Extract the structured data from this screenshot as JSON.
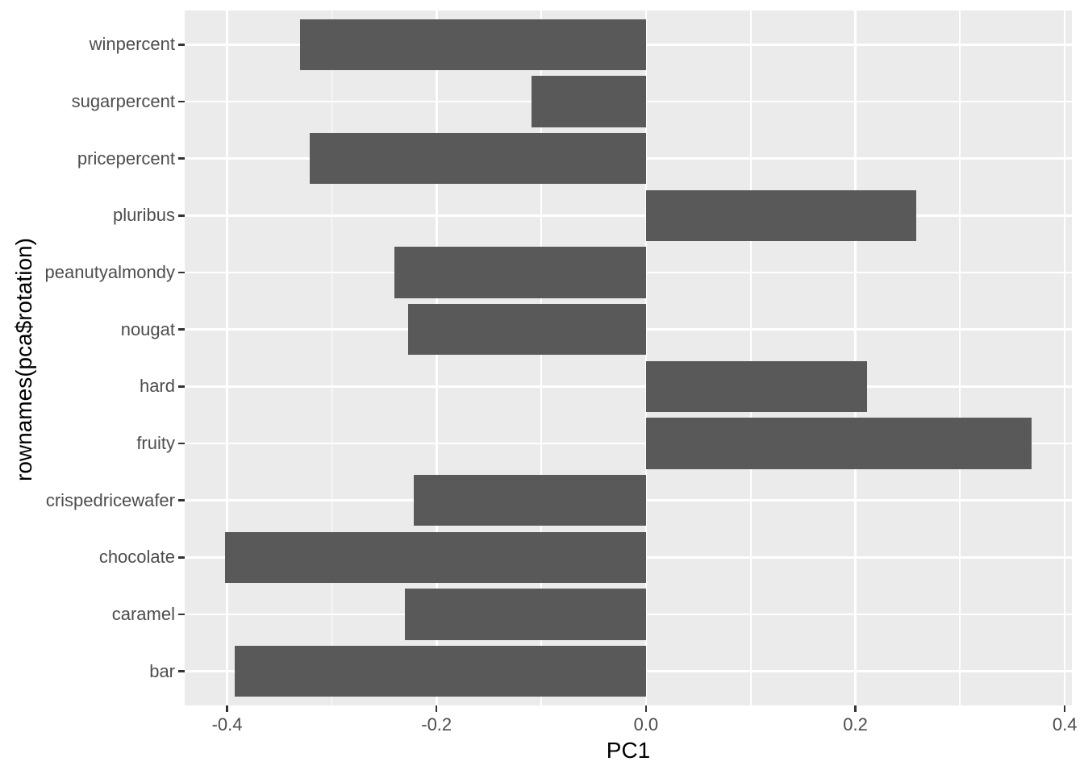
{
  "chart_data": {
    "type": "bar",
    "orientation": "horizontal",
    "title": "",
    "xlabel": "PC1",
    "ylabel": "rownames(pca$rotation)",
    "categories": [
      "winpercent",
      "sugarpercent",
      "pricepercent",
      "pluribus",
      "peanutyalmondy",
      "nougat",
      "hard",
      "fruity",
      "crispedricewafer",
      "chocolate",
      "caramel",
      "bar"
    ],
    "values": [
      -0.33,
      -0.109,
      -0.321,
      0.258,
      -0.24,
      -0.227,
      0.211,
      0.368,
      -0.222,
      -0.402,
      -0.23,
      -0.393
    ],
    "xlim": [
      -0.4405,
      0.4068
    ],
    "x_major_ticks": [
      -0.4,
      -0.2,
      0,
      0.2,
      0.4
    ],
    "x_tick_labels": [
      "-0.4",
      "-0.2",
      "0.0",
      "0.2",
      "0.4"
    ],
    "x_minor_ticks": [
      -0.3,
      -0.1,
      0.1,
      0.3
    ],
    "grid": true,
    "legend": "none",
    "bar_width_fraction": 0.9,
    "colors": {
      "bar_fill": "#595959",
      "panel_bg": "#EBEBEB",
      "grid": "#FFFFFF",
      "tick_text": "#4D4D4D",
      "axis_title": "#000000",
      "tick_mark": "#333333",
      "background": "#FFFFFF"
    }
  }
}
